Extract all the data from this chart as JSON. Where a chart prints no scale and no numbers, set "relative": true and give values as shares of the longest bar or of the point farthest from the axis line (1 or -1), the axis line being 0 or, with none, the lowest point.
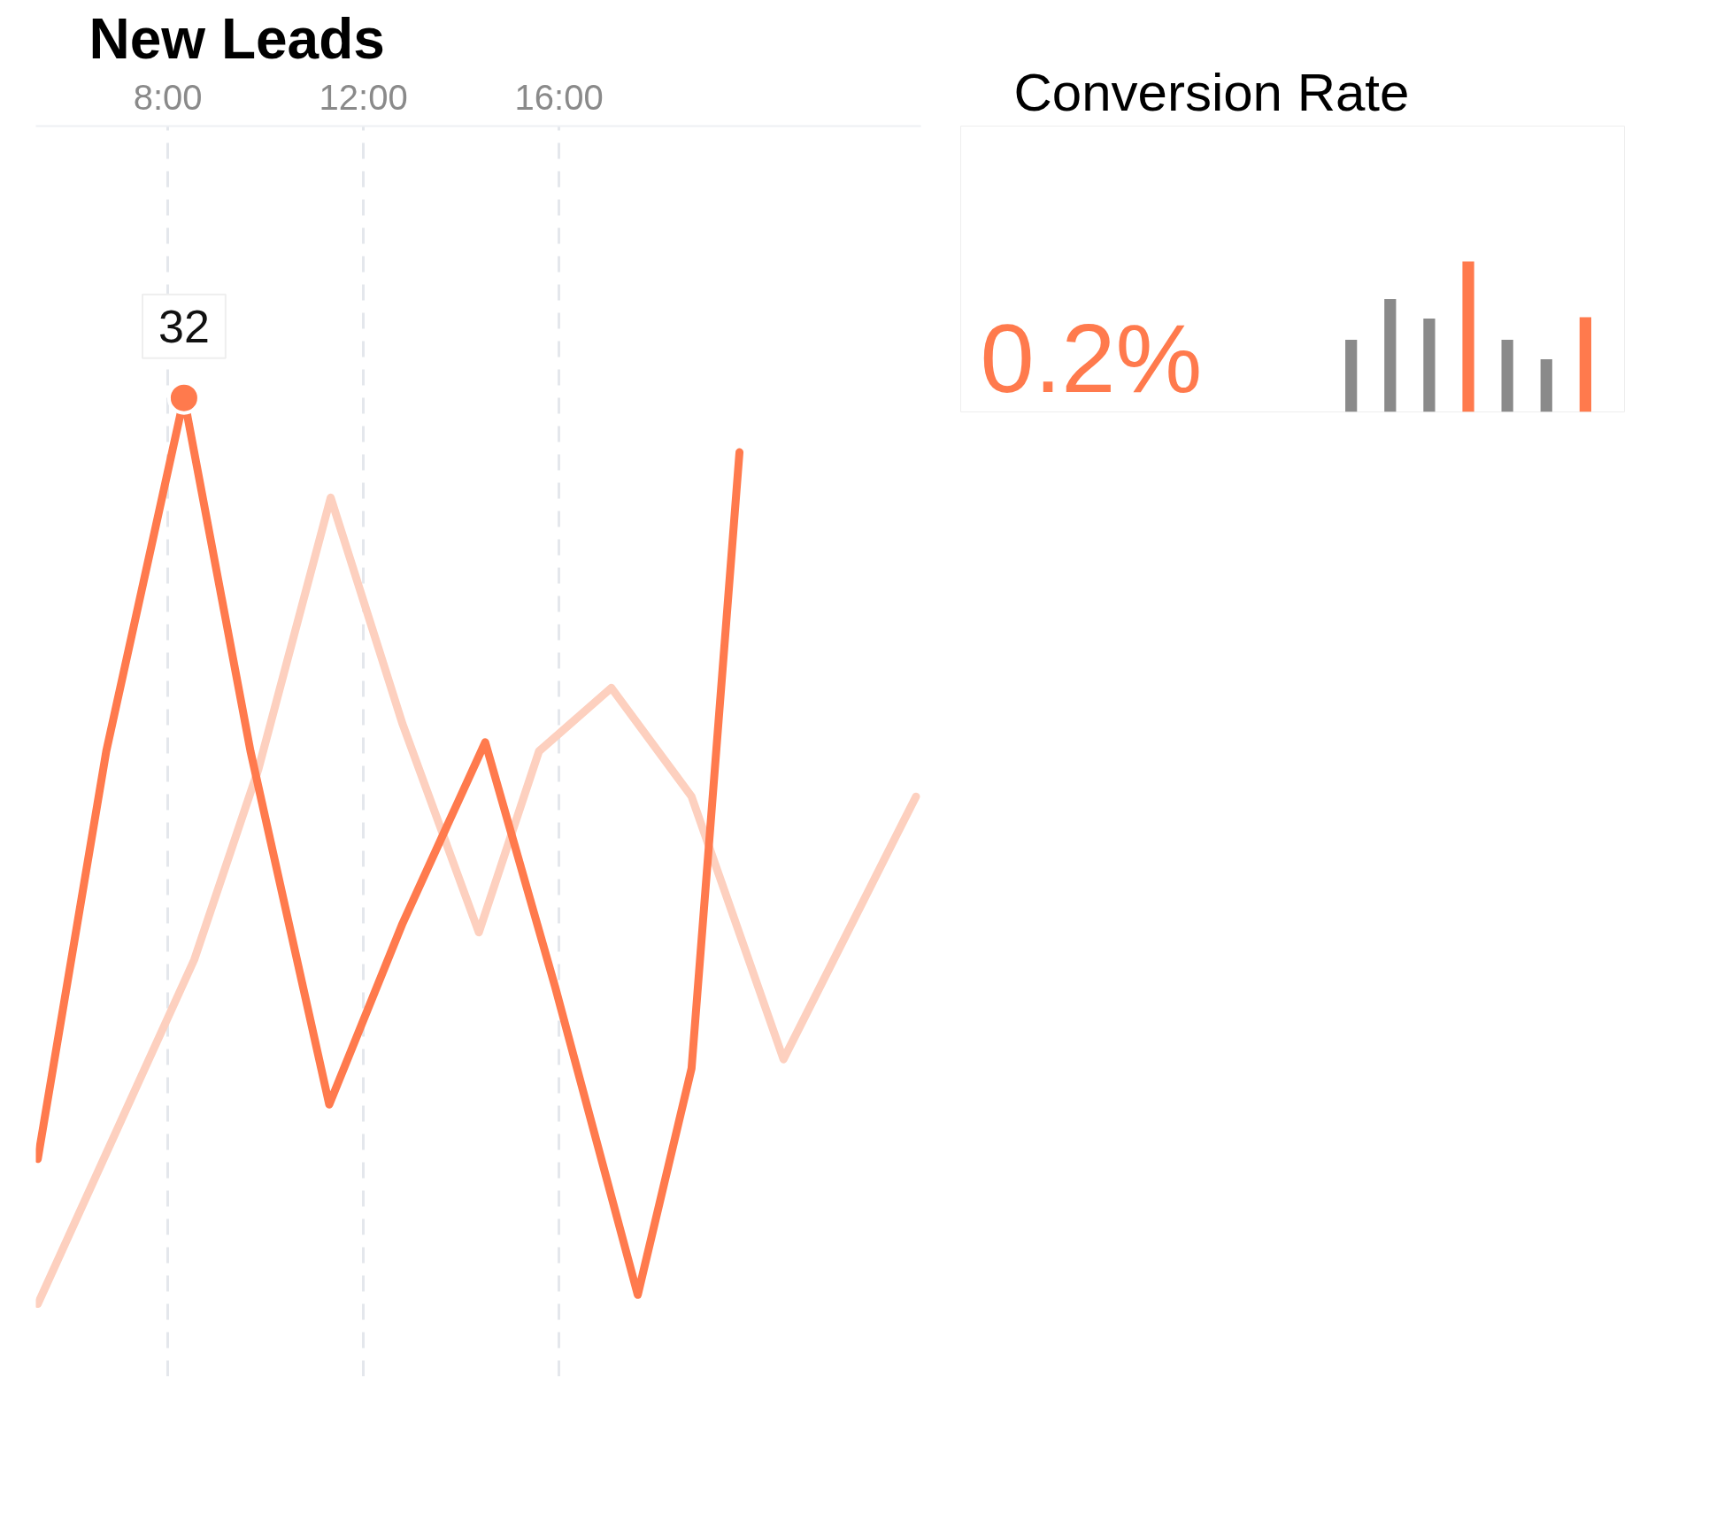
{
  "chart_data": [
    {
      "type": "line",
      "title": "New Leads",
      "relative": true,
      "xlim": [
        5.3,
        23.4
      ],
      "xticks": [
        {
          "value": 8,
          "label": "8:00"
        },
        {
          "value": 12,
          "label": "12:00"
        },
        {
          "value": 16,
          "label": "16:00"
        }
      ],
      "grid": "x",
      "annotations": [
        {
          "text": "32",
          "x": 8.33,
          "y": 1.0
        }
      ],
      "series": [
        {
          "color": "#fdd0bf",
          "x": [
            5.34,
            8.54,
            9.85,
            11.33,
            12.8,
            14.36,
            15.59,
            17.07,
            18.71,
            20.59,
            23.3
          ],
          "values": [
            0,
            0.38,
            0.59,
            0.89,
            0.64,
            0.41,
            0.61,
            0.68,
            0.56,
            0.27,
            0.56
          ]
        },
        {
          "color": "#ff7a4d",
          "x": [
            5.34,
            6.74,
            8.33,
            9.69,
            11.3,
            12.8,
            14.49,
            15.92,
            17.61,
            18.71,
            19.69
          ],
          "values": [
            0.16,
            0.61,
            1.0,
            0.61,
            0.22,
            0.42,
            0.62,
            0.35,
            0.01,
            0.26,
            0.94
          ]
        },
        {
          "type": "scatter",
          "marker": "circle",
          "color": "#ff7a4d",
          "x": [
            8.33
          ],
          "values": [
            1.0
          ]
        }
      ]
    },
    {
      "type": "bar",
      "title": "Conversion Rate",
      "relative": true,
      "annotations": [
        "0.2%"
      ],
      "categories": [
        null,
        null,
        null,
        null,
        null,
        null,
        null
      ],
      "values": [
        0.48,
        0.75,
        0.62,
        1.0,
        0.48,
        0.35,
        0.63
      ],
      "colors": [
        "#8a8a8a",
        "#8a8a8a",
        "#8a8a8a",
        "#ff7a4d",
        "#8a8a8a",
        "#8a8a8a",
        "#ff7a4d"
      ]
    }
  ]
}
